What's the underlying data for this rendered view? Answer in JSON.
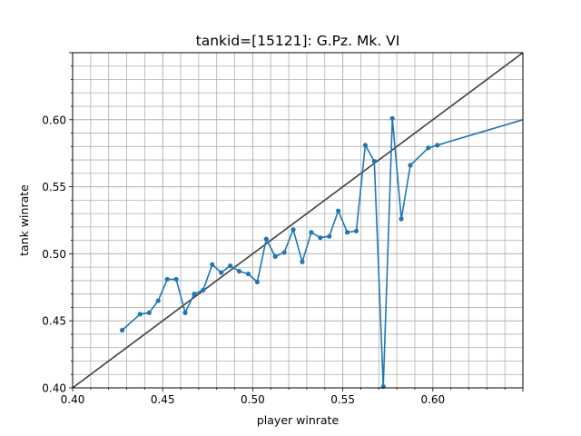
{
  "chart_data": {
    "type": "line",
    "title": "tankid=[15121]: G.Pz. Mk. VI",
    "xlabel": "player winrate",
    "ylabel": "tank winrate",
    "xlim": [
      0.4,
      0.65
    ],
    "ylim": [
      0.4,
      0.65
    ],
    "x_ticks": [
      "0.40",
      "0.45",
      "0.50",
      "0.55",
      "0.60"
    ],
    "y_ticks": [
      "0.40",
      "0.45",
      "0.50",
      "0.55",
      "0.60"
    ],
    "grid": "major and minor",
    "colors": {
      "series": "#1f77b4",
      "reference_line": "#404040",
      "grid": "#b0b0b0"
    },
    "reference_line": {
      "x": [
        0.4,
        0.65
      ],
      "y": [
        0.4,
        0.65
      ]
    },
    "series": [
      {
        "x": [
          0.4275,
          0.4375,
          0.4425,
          0.4475,
          0.4525,
          0.4575,
          0.4625,
          0.4675,
          0.4725,
          0.4775,
          0.4825,
          0.4875,
          0.4925,
          0.4975,
          0.5025,
          0.5075,
          0.5125,
          0.5175,
          0.5225,
          0.5275,
          0.5325,
          0.5375,
          0.5425,
          0.5475,
          0.5525,
          0.5575,
          0.5625,
          0.5675,
          0.5725,
          0.5775,
          0.5825,
          0.5875,
          0.5975,
          0.6025,
          0.65
        ],
        "y": [
          0.443,
          0.455,
          0.456,
          0.465,
          0.481,
          0.481,
          0.456,
          0.47,
          0.473,
          0.492,
          0.486,
          0.491,
          0.487,
          0.485,
          0.479,
          0.511,
          0.498,
          0.501,
          0.518,
          0.494,
          0.516,
          0.512,
          0.513,
          0.532,
          0.516,
          0.517,
          0.581,
          0.569,
          0.401,
          0.601,
          0.526,
          0.566,
          0.579,
          0.581,
          0.6
        ]
      }
    ]
  }
}
